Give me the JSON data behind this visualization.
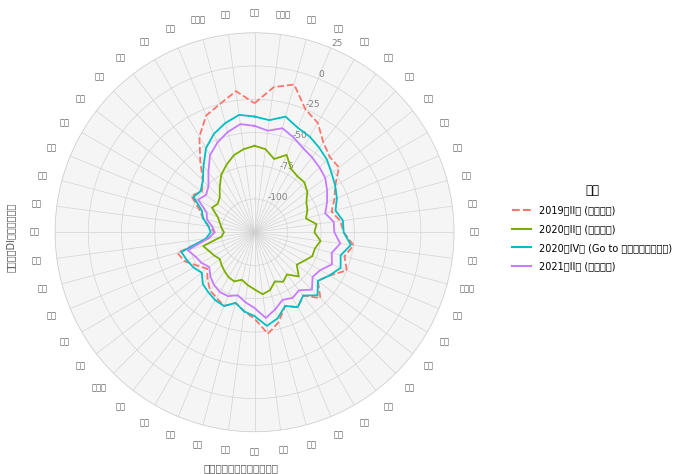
{
  "categories": [
    "全国",
    "北海道",
    "青森",
    "岩手",
    "宮城",
    "秋田",
    "山形",
    "福島",
    "茨城",
    "栃木",
    "群馬",
    "埼玉",
    "千葉",
    "東京",
    "神奈川",
    "新潟",
    "富山",
    "石川",
    "福井",
    "山梨",
    "長野",
    "岐阜",
    "静岡",
    "愛知",
    "三重",
    "滋賀",
    "京都",
    "大阪",
    "兵庫",
    "奈良",
    "和歌山",
    "鳥取",
    "島根",
    "岡山",
    "広島",
    "山口",
    "徳島",
    "香川",
    "愛媛",
    "高知",
    "福岡",
    "佐賀",
    "長崎",
    "熊本",
    "大分",
    "宮崎",
    "鹿児島",
    "沖縄"
  ],
  "series": {
    "2019年II期 (コロナ前)": {
      "color": "#F8766D",
      "linestyle": "dashed",
      "values": [
        -28,
        -15,
        -10,
        -25,
        -30,
        -40,
        -45,
        -45,
        -55,
        -60,
        -65,
        -60,
        -58,
        -50,
        -55,
        -50,
        -60,
        -65,
        -55,
        -65,
        -60,
        -65,
        -55,
        -48,
        -60,
        -65,
        -70,
        -65,
        -68,
        -70,
        -75,
        -80,
        -75,
        -68,
        -65,
        -90,
        -95,
        -90,
        -85,
        -80,
        -70,
        -75,
        -70,
        -58,
        -42,
        -30,
        -25,
        -18
      ]
    },
    "2020年II期 (コロナ禍)": {
      "color": "#7CAE00",
      "linestyle": "solid",
      "values": [
        -60,
        -62,
        -68,
        -62,
        -70,
        -72,
        -72,
        -75,
        -80,
        -82,
        -85,
        -78,
        -80,
        -75,
        -78,
        -78,
        -82,
        -85,
        -78,
        -85,
        -82,
        -85,
        -80,
        -78,
        -82,
        -85,
        -88,
        -85,
        -86,
        -88,
        -90,
        -92,
        -90,
        -88,
        -85,
        -100,
        -102,
        -100,
        -98,
        -95,
        -88,
        -90,
        -88,
        -82,
        -75,
        -70,
        -65,
        -62
      ]
    },
    "2020年IV期 (Go to キャンペーン期間)": {
      "color": "#00BFC4",
      "linestyle": "solid",
      "values": [
        -38,
        -40,
        -35,
        -40,
        -42,
        -45,
        -48,
        -52,
        -55,
        -58,
        -62,
        -58,
        -58,
        -52,
        -58,
        -55,
        -60,
        -65,
        -58,
        -65,
        -60,
        -65,
        -58,
        -54,
        -62,
        -65,
        -70,
        -65,
        -66,
        -68,
        -70,
        -75,
        -72,
        -70,
        -68,
        -88,
        -92,
        -90,
        -85,
        -82,
        -72,
        -74,
        -70,
        -62,
        -52,
        -45,
        -40,
        -36
      ]
    },
    "2021年II期 (コロナ禍)": {
      "color": "#C77CFF",
      "linestyle": "solid",
      "values": [
        -45,
        -48,
        -44,
        -48,
        -52,
        -54,
        -56,
        -58,
        -62,
        -66,
        -70,
        -65,
        -65,
        -60,
        -65,
        -62,
        -68,
        -70,
        -64,
        -70,
        -68,
        -70,
        -65,
        -60,
        -68,
        -72,
        -76,
        -73,
        -73,
        -75,
        -78,
        -82,
        -79,
        -77,
        -73,
        -90,
        -95,
        -93,
        -88,
        -86,
        -76,
        -79,
        -76,
        -68,
        -58,
        -52,
        -47,
        -43
      ]
    }
  },
  "r_min": -125,
  "r_max": 25,
  "r_ticks": [
    -100,
    -75,
    -50,
    -25,
    0,
    25
  ],
  "ylabel": "景況水準DI（小売業業）",
  "note": "注：破線は各時期の全国値",
  "legend_title": "時期",
  "background_color": "#ffffff",
  "grid_color": "#d0d0d0",
  "plot_bg_color": "#f5f5f5"
}
